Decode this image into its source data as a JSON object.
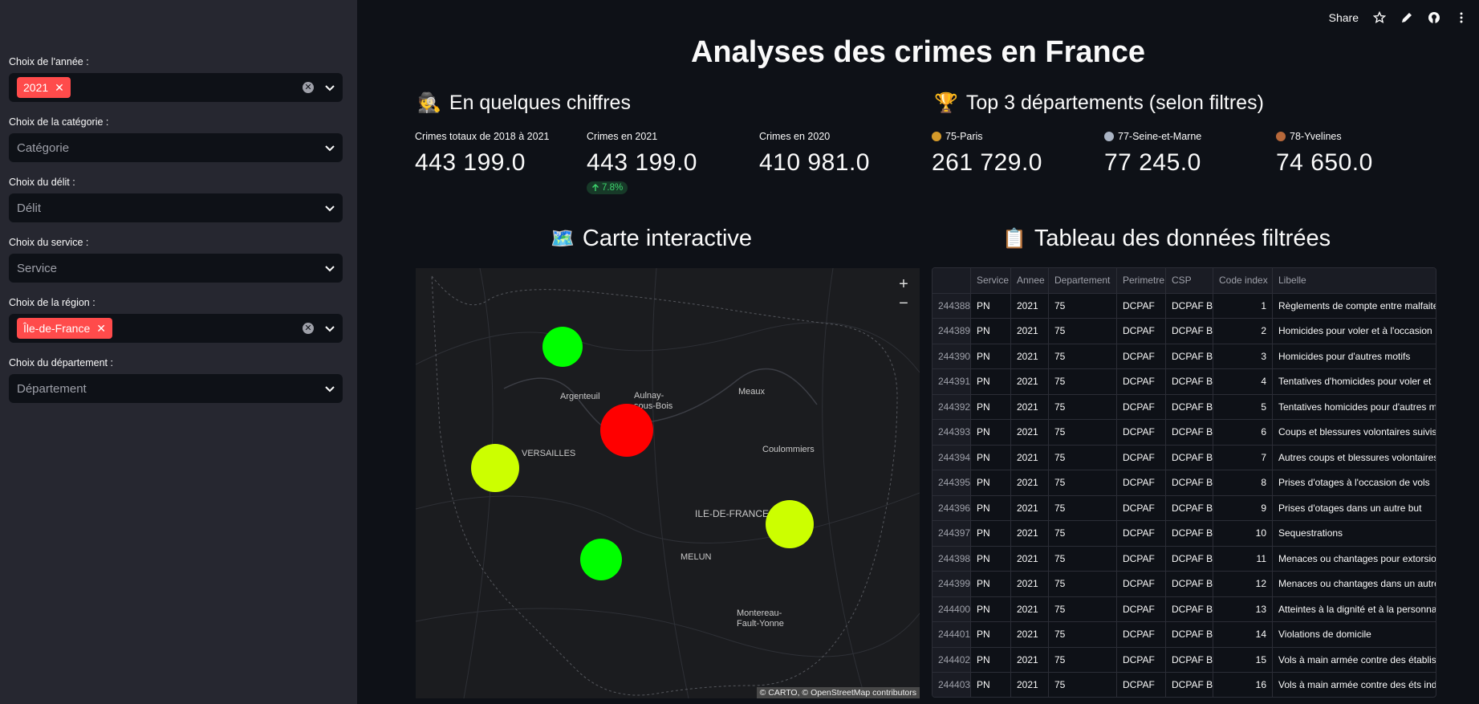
{
  "toolbar": {
    "share": "Share"
  },
  "sidebar": {
    "annee": {
      "label": "Choix de l'année :",
      "chip": "2021"
    },
    "categorie": {
      "label": "Choix de la catégorie :",
      "placeholder": "Catégorie"
    },
    "delit": {
      "label": "Choix du délit :",
      "placeholder": "Délit"
    },
    "service": {
      "label": "Choix du service :",
      "placeholder": "Service"
    },
    "region": {
      "label": "Choix de la région :",
      "chip": "Île-de-France"
    },
    "departement": {
      "label": "Choix du département :",
      "placeholder": "Département"
    }
  },
  "title": "Analyses des crimes en France",
  "chiffres": {
    "heading": "En quelques chiffres",
    "emoji": "🕵️",
    "m1": {
      "label": "Crimes totaux de 2018 à 2021",
      "value": "443 199.0"
    },
    "m2": {
      "label": "Crimes en 2021",
      "value": "443 199.0",
      "delta": "7.8%"
    },
    "m3": {
      "label": "Crimes en 2020",
      "value": "410 981.0"
    }
  },
  "top3": {
    "heading": "Top 3 départements (selon filtres)",
    "emoji": "🏆",
    "d1": {
      "label": "75-Paris",
      "value": "261 729.0"
    },
    "d2": {
      "label": "77-Seine-et-Marne",
      "value": "77 245.0"
    },
    "d3": {
      "label": "78-Yvelines",
      "value": "74 650.0"
    }
  },
  "carte": {
    "heading": "Carte interactive",
    "emoji": "🗺️",
    "places": [
      "Argenteuil",
      "Aulnay-",
      "sous-Bois",
      "Meaux",
      "VERSAILLES",
      "Coulommiers",
      "ILE-DE-FRANCE",
      "MELUN",
      "Montereau-",
      "Fault-Yonne"
    ],
    "zoom_in": "+",
    "zoom_out": "−",
    "attribution": "© CARTO, © OpenStreetMap contributors"
  },
  "tableau": {
    "heading": "Tableau des données filtrées",
    "emoji": "📋",
    "columns": [
      "",
      "Service",
      "Annee",
      "Departement",
      "Perimetre",
      "CSP",
      "Code index",
      "Libelle"
    ],
    "rows": [
      [
        "244388",
        "PN",
        "2021",
        "75",
        "DCPAF",
        "DCPAF BC",
        "1",
        "Règlements de compte entre malfaite"
      ],
      [
        "244389",
        "PN",
        "2021",
        "75",
        "DCPAF",
        "DCPAF BC",
        "2",
        "Homicides pour voler et à l'occasion"
      ],
      [
        "244390",
        "PN",
        "2021",
        "75",
        "DCPAF",
        "DCPAF BC",
        "3",
        "Homicides pour d'autres motifs"
      ],
      [
        "244391",
        "PN",
        "2021",
        "75",
        "DCPAF",
        "DCPAF BC",
        "4",
        "Tentatives d'homicides pour voler et"
      ],
      [
        "244392",
        "PN",
        "2021",
        "75",
        "DCPAF",
        "DCPAF BC",
        "5",
        "Tentatives homicides pour d'autres m"
      ],
      [
        "244393",
        "PN",
        "2021",
        "75",
        "DCPAF",
        "DCPAF BC",
        "6",
        "Coups et blessures volontaires suivis"
      ],
      [
        "244394",
        "PN",
        "2021",
        "75",
        "DCPAF",
        "DCPAF BC",
        "7",
        "Autres coups et blessures volontaires"
      ],
      [
        "244395",
        "PN",
        "2021",
        "75",
        "DCPAF",
        "DCPAF BC",
        "8",
        "Prises d'otages à l'occasion de vols"
      ],
      [
        "244396",
        "PN",
        "2021",
        "75",
        "DCPAF",
        "DCPAF BC",
        "9",
        "Prises d'otages dans un autre but"
      ],
      [
        "244397",
        "PN",
        "2021",
        "75",
        "DCPAF",
        "DCPAF BC",
        "10",
        "Sequestrations"
      ],
      [
        "244398",
        "PN",
        "2021",
        "75",
        "DCPAF",
        "DCPAF BC",
        "11",
        "Menaces ou chantages pour extorsio"
      ],
      [
        "244399",
        "PN",
        "2021",
        "75",
        "DCPAF",
        "DCPAF BC",
        "12",
        "Menaces ou chantages dans un autre"
      ],
      [
        "244400",
        "PN",
        "2021",
        "75",
        "DCPAF",
        "DCPAF BC",
        "13",
        "Atteintes à la dignité et à la  personna"
      ],
      [
        "244401",
        "PN",
        "2021",
        "75",
        "DCPAF",
        "DCPAF BC",
        "14",
        "Violations de domicile"
      ],
      [
        "244402",
        "PN",
        "2021",
        "75",
        "DCPAF",
        "DCPAF BC",
        "15",
        "Vols à main armée contre des établis"
      ],
      [
        "244403",
        "PN",
        "2021",
        "75",
        "DCPAF",
        "DCPAF BC",
        "16",
        "Vols à main armée contre des éts ind"
      ]
    ]
  },
  "colors": {
    "accent": "#ff4b4b",
    "high": "#ff0000",
    "mid": "#ccff00",
    "low": "#00ff00"
  }
}
